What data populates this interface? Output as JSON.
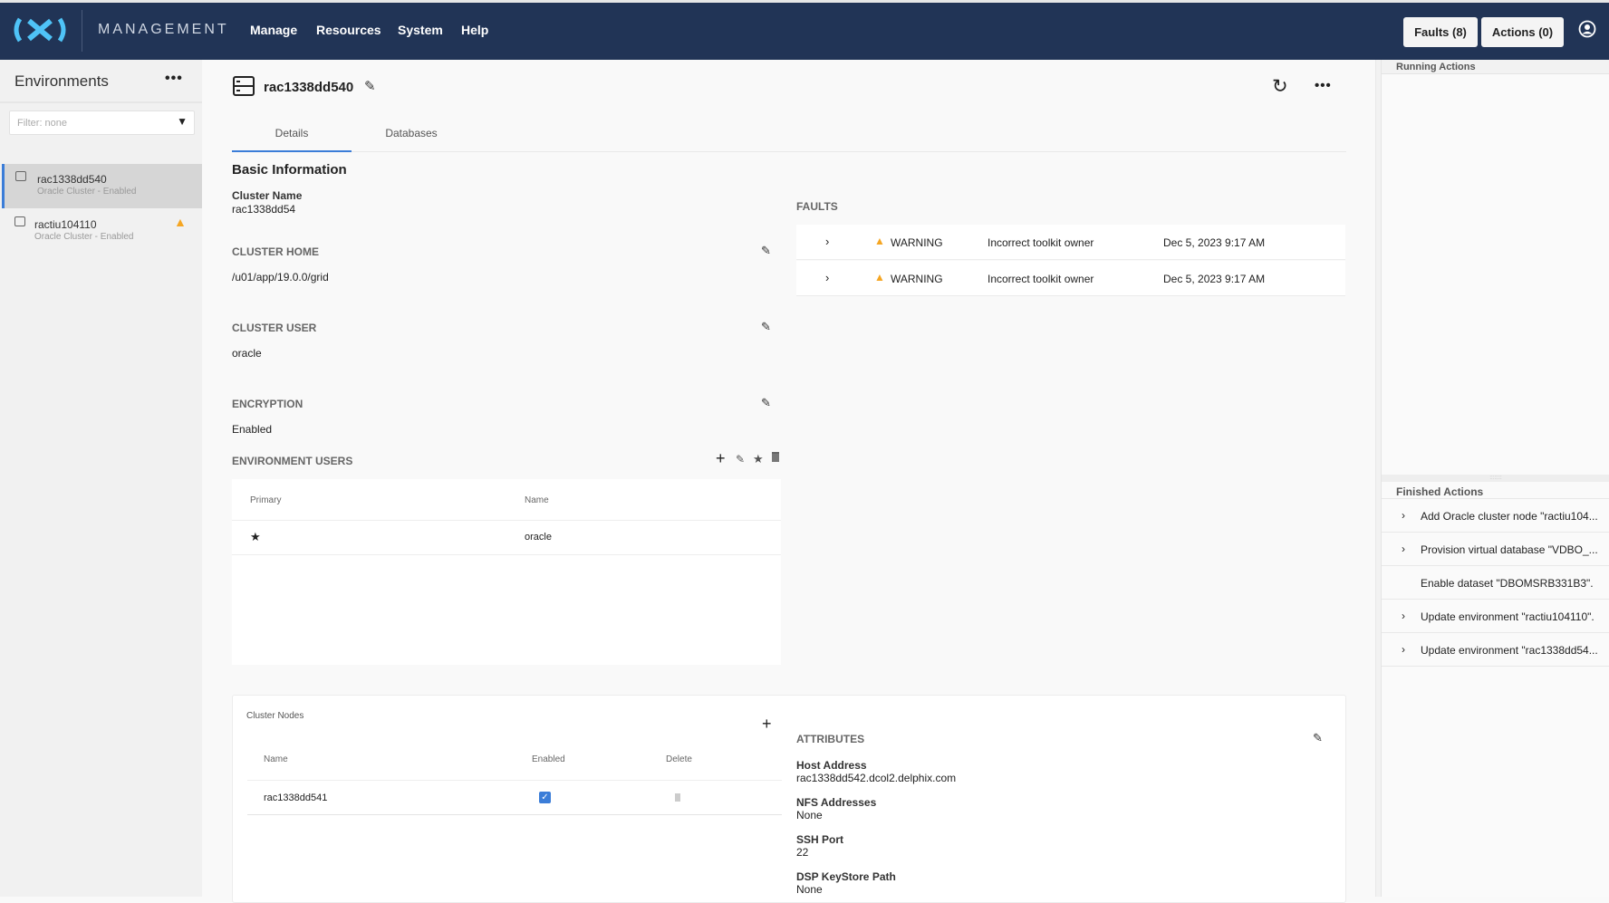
{
  "header": {
    "brand": "MANAGEMENT",
    "nav": [
      "Manage",
      "Resources",
      "System",
      "Help"
    ],
    "faults_button": "Faults (8)",
    "actions_button": "Actions (0)"
  },
  "sidebar": {
    "title": "Environments",
    "filter_placeholder": "Filter: none",
    "items": [
      {
        "name": "rac1338dd540",
        "subtitle": "Oracle Cluster - Enabled",
        "selected": true,
        "warning": false
      },
      {
        "name": "ractiu104110",
        "subtitle": "Oracle Cluster - Enabled",
        "selected": false,
        "warning": true
      }
    ]
  },
  "main": {
    "title": "rac1338dd540",
    "tabs": [
      "Details",
      "Databases"
    ],
    "active_tab": "Details",
    "basic_info": "Basic Information",
    "cluster_name_label": "Cluster Name",
    "cluster_name": "rac1338dd54",
    "cluster_home_label": "CLUSTER HOME",
    "cluster_home": "/u01/app/19.0.0/grid",
    "cluster_user_label": "CLUSTER USER",
    "cluster_user": "oracle",
    "encryption_label": "ENCRYPTION",
    "encryption": "Enabled",
    "env_users": {
      "label": "ENVIRONMENT USERS",
      "columns": [
        "Primary",
        "Name"
      ],
      "rows": [
        {
          "primary": "★",
          "name": "oracle"
        }
      ]
    },
    "faults": {
      "label": "FAULTS",
      "rows": [
        {
          "severity": "WARNING",
          "message": "Incorrect toolkit owner",
          "date": "Dec 5, 2023 9:17 AM"
        },
        {
          "severity": "WARNING",
          "message": "Incorrect toolkit owner",
          "date": "Dec 5, 2023 9:17 AM"
        }
      ]
    },
    "cluster_nodes": {
      "label": "Cluster Nodes",
      "columns": [
        "Name",
        "Enabled",
        "Delete"
      ],
      "rows": [
        {
          "name": "rac1338dd541",
          "enabled": true
        }
      ]
    },
    "attributes": {
      "label": "ATTRIBUTES",
      "items": [
        {
          "label": "Host Address",
          "value": "rac1338dd542.dcol2.delphix.com"
        },
        {
          "label": "NFS Addresses",
          "value": "None"
        },
        {
          "label": "SSH Port",
          "value": "22"
        },
        {
          "label": "DSP KeyStore Path",
          "value": "None"
        }
      ]
    }
  },
  "right_panel": {
    "running_label": "Running Actions",
    "finished_label": "Finished Actions",
    "finished": [
      {
        "text": "Add Oracle cluster node \"ractiu104...",
        "expandable": true
      },
      {
        "text": "Provision virtual database \"VDBO_...",
        "expandable": true
      },
      {
        "text": "Enable dataset \"DBOMSRB331B3\".",
        "expandable": false
      },
      {
        "text": "Update environment \"ractiu104110\".",
        "expandable": true
      },
      {
        "text": "Update environment \"rac1338dd54...",
        "expandable": true
      }
    ]
  },
  "colors": {
    "header_bg": "#213456",
    "accent": "#3b7dd8",
    "warning": "#f5a623",
    "logo": "#4fc3f7"
  }
}
